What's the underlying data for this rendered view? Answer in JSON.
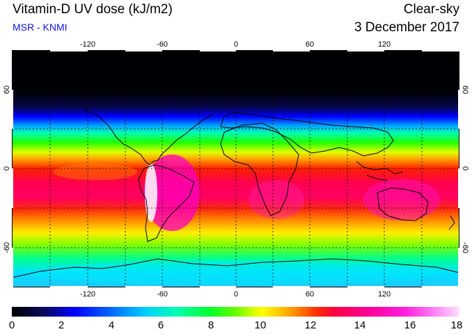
{
  "header": {
    "title": "Vitamin-D UV dose (kJ/m2)",
    "source": "MSR - KNMI",
    "sky_condition": "Clear-sky",
    "date": "3 December 2017"
  },
  "map": {
    "longitude_ticks": [
      "-120",
      "-60",
      "0",
      "60",
      "120"
    ],
    "latitude_ticks": [
      "60",
      "0",
      "-60"
    ],
    "gridlines": "dotted",
    "colors": {
      "polar_night": "#000000",
      "ocean_outline": "#000000",
      "peak_andes": "#ffffff"
    }
  },
  "colorbar": {
    "labels": [
      "0",
      "2",
      "4",
      "6",
      "8",
      "10",
      "12",
      "14",
      "16",
      "18"
    ],
    "min": 0,
    "max": 18
  }
}
